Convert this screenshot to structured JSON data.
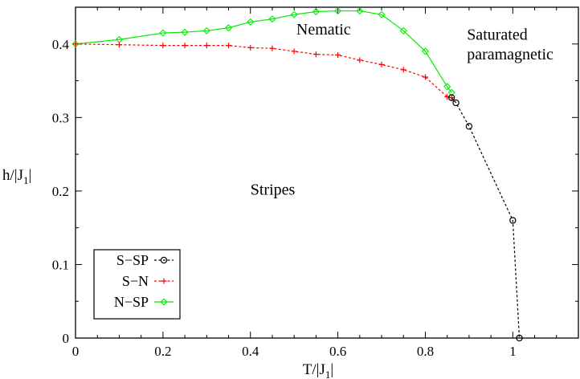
{
  "chart_data": {
    "type": "line",
    "xlabel": "T/|J",
    "xlabel_sub": "1",
    "ylabel": "h/|J",
    "ylabel_sub": "1",
    "xlim": [
      0,
      1.15
    ],
    "ylim": [
      0,
      0.45
    ],
    "x_ticks": [
      0,
      0.2,
      0.4,
      0.6,
      0.8,
      1
    ],
    "x_tick_labels": [
      "0",
      "0.2",
      "0.4",
      "0.6",
      "0.8",
      "1"
    ],
    "y_ticks": [
      0,
      0.1,
      0.2,
      0.3,
      0.4
    ],
    "y_tick_labels": [
      "0",
      "0.1",
      "0.2",
      "0.3",
      "0.4"
    ],
    "grid": false,
    "legend_position": "bottom-left",
    "series": [
      {
        "name": "S−SP",
        "color": "#000000",
        "marker": "circle",
        "dash": "dotted",
        "x": [
          0.86,
          0.87,
          0.9,
          1.0,
          1.015
        ],
        "y": [
          0.327,
          0.32,
          0.288,
          0.16,
          0.0
        ]
      },
      {
        "name": "S−N",
        "color": "#ff0000",
        "marker": "plus",
        "dash": "dotted",
        "x": [
          0,
          0.1,
          0.2,
          0.25,
          0.3,
          0.35,
          0.4,
          0.45,
          0.5,
          0.55,
          0.6,
          0.65,
          0.7,
          0.75,
          0.8,
          0.85,
          0.86
        ],
        "y": [
          0.4,
          0.399,
          0.398,
          0.398,
          0.398,
          0.398,
          0.395,
          0.394,
          0.39,
          0.386,
          0.385,
          0.378,
          0.372,
          0.365,
          0.355,
          0.328,
          0.327
        ]
      },
      {
        "name": "N−SP",
        "color": "#00ee00",
        "marker": "diamond",
        "dash": "solid",
        "x": [
          0,
          0.1,
          0.2,
          0.25,
          0.3,
          0.35,
          0.4,
          0.45,
          0.5,
          0.55,
          0.6,
          0.65,
          0.7,
          0.75,
          0.8,
          0.85,
          0.86
        ],
        "y": [
          0.4,
          0.406,
          0.415,
          0.416,
          0.418,
          0.422,
          0.43,
          0.434,
          0.44,
          0.444,
          0.445,
          0.445,
          0.44,
          0.418,
          0.39,
          0.342,
          0.334
        ]
      }
    ],
    "annotations": [
      {
        "text": "Nematic",
        "x": 0.505,
        "y": 0.413
      },
      {
        "text": "Saturated",
        "x": 0.895,
        "y": 0.406
      },
      {
        "text": "paramagnetic",
        "x": 0.895,
        "y": 0.379
      },
      {
        "text": "Stripes",
        "x": 0.4,
        "y": 0.195
      }
    ]
  }
}
